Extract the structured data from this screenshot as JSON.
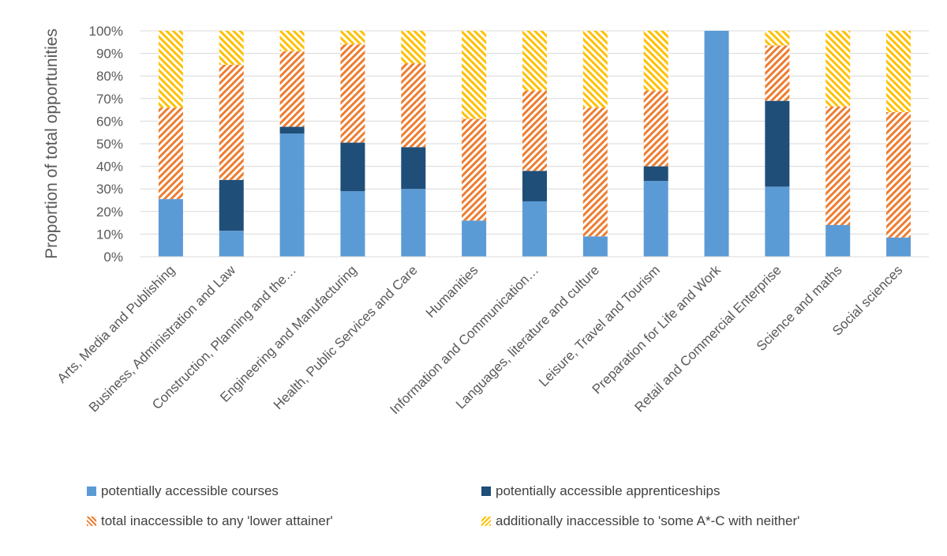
{
  "chart_data": {
    "type": "bar",
    "stacked": true,
    "ylabel": "Proportion of total opportunities",
    "xlabel": "",
    "ylim": [
      0,
      100
    ],
    "yticks": [
      "0%",
      "10%",
      "20%",
      "30%",
      "40%",
      "50%",
      "60%",
      "70%",
      "80%",
      "90%",
      "100%"
    ],
    "grid": true,
    "legend_position": "bottom",
    "categories": [
      "Arts, Media and Publishing",
      "Business, Administration and Law",
      "Construction, Planning and the…",
      "Engineering and Manufacturing",
      "Health, Public Services and Care",
      "Humanities",
      "Information and Communication…",
      "Languages, literature and culture",
      "Leisure, Travel and Tourism",
      "Preparation for Life and Work",
      "Retail and Commercial Enterprise",
      "Science and maths",
      "Social sciences"
    ],
    "series": [
      {
        "name": "potentially accessible courses",
        "color": "#5B9BD5",
        "pattern": "solid",
        "values": [
          25.5,
          11.5,
          54.5,
          29,
          30,
          16,
          24.5,
          9,
          33.5,
          100,
          31,
          14,
          8.5
        ]
      },
      {
        "name": "potentially accessible apprenticeships",
        "color": "#1F4E79",
        "pattern": "solid",
        "values": [
          0,
          22.5,
          3,
          21.5,
          18.5,
          0,
          13.5,
          0,
          6.5,
          0,
          38,
          0,
          0
        ]
      },
      {
        "name": "total inaccessible to any 'lower attainer'",
        "color": "#ED7D31",
        "pattern": "hatch",
        "values": [
          40.5,
          51,
          33.5,
          43.5,
          37,
          45,
          35.5,
          57,
          33.5,
          0,
          24.5,
          52.5,
          55.5
        ]
      },
      {
        "name": "additionally inaccessible to 'some A*-C with neither'",
        "color": "#FFC000",
        "pattern": "hatch",
        "values": [
          34,
          15,
          9,
          6,
          14.5,
          39,
          26.5,
          34,
          26.5,
          0,
          6.5,
          33.5,
          36
        ]
      }
    ]
  }
}
